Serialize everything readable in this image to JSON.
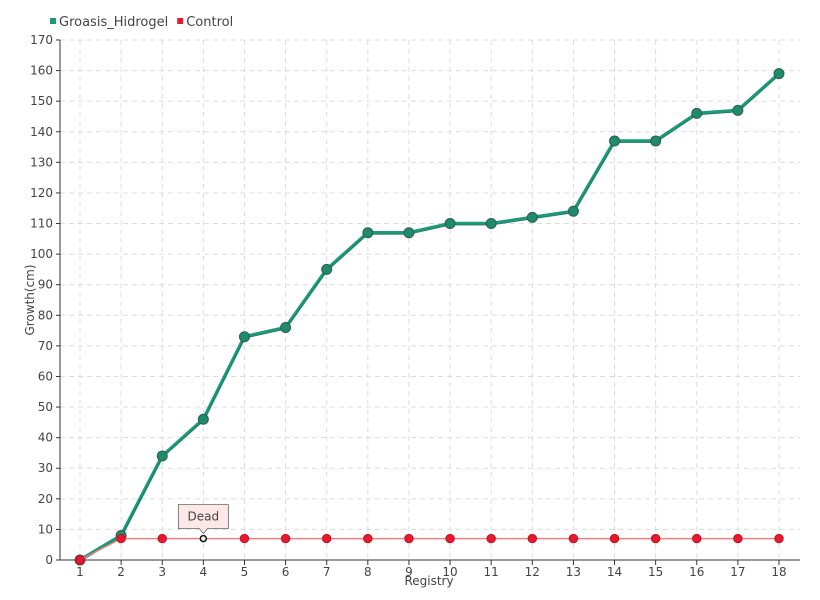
{
  "chart_data": {
    "type": "line",
    "xlabel": "Registry",
    "ylabel": "Growth(cm)",
    "ylim": [
      0,
      170
    ],
    "yticks": [
      0,
      10,
      20,
      30,
      40,
      50,
      60,
      70,
      80,
      90,
      100,
      110,
      120,
      130,
      140,
      150,
      160,
      170
    ],
    "x": [
      1,
      2,
      3,
      4,
      5,
      6,
      7,
      8,
      9,
      10,
      11,
      12,
      13,
      14,
      15,
      16,
      17,
      18
    ],
    "grid": true,
    "legend_position": "top-left",
    "series": [
      {
        "name": "Groasis_Hidrogel",
        "color": "#1a9a7a",
        "values": [
          0,
          8,
          34,
          46,
          73,
          76,
          95,
          107,
          107,
          110,
          110,
          112,
          114,
          137,
          137,
          146,
          147,
          159
        ]
      },
      {
        "name": "Control",
        "color": "#e8192c",
        "values": [
          0,
          7,
          7,
          7,
          7,
          7,
          7,
          7,
          7,
          7,
          7,
          7,
          7,
          7,
          7,
          7,
          7,
          7
        ]
      }
    ],
    "annotation": {
      "text": "Dead",
      "x": 4,
      "y": 7
    }
  }
}
